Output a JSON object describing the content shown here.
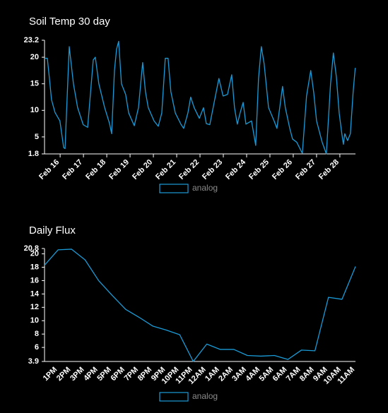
{
  "chart_data": [
    {
      "type": "line",
      "title": "Soil Temp 30 day",
      "x": [
        15.33,
        15.45,
        15.54,
        15.63,
        15.78,
        15.99,
        16.15,
        16.21,
        16.39,
        16.57,
        16.75,
        16.99,
        17.18,
        17.42,
        17.51,
        17.66,
        17.91,
        18.12,
        18.21,
        18.33,
        18.42,
        18.51,
        18.63,
        18.81,
        18.94,
        19.18,
        19.36,
        19.54,
        19.66,
        19.78,
        20.03,
        20.21,
        20.36,
        20.51,
        20.63,
        20.75,
        20.94,
        21.18,
        21.3,
        21.48,
        21.6,
        21.75,
        21.97,
        22.15,
        22.27,
        22.42,
        22.63,
        22.81,
        22.99,
        23.18,
        23.36,
        23.48,
        23.6,
        23.72,
        23.85,
        23.97,
        24.21,
        24.39,
        24.51,
        24.63,
        24.75,
        24.94,
        25.18,
        25.3,
        25.42,
        25.54,
        25.66,
        25.85,
        25.97,
        26.15,
        26.39,
        26.57,
        26.75,
        26.88,
        27.0,
        27.24,
        27.42,
        27.6,
        27.72,
        27.85,
        27.97,
        28.09,
        28.15,
        28.21,
        28.33,
        28.45,
        28.57,
        28.66
      ],
      "series": [
        {
          "name": "analog",
          "color": "#1a9bd7",
          "values": [
            19.8,
            19.8,
            16,
            12,
            9.6,
            8,
            3,
            2.8,
            22,
            15,
            10.5,
            7.3,
            6.8,
            19.5,
            20,
            15,
            10.5,
            7.5,
            5.6,
            17.5,
            21.5,
            23,
            15,
            13,
            9.5,
            7.1,
            10.5,
            19,
            13.5,
            10.5,
            8,
            7,
            9.5,
            19.8,
            19.8,
            13.5,
            9.5,
            7.4,
            6.6,
            9.5,
            12.5,
            10.5,
            8.5,
            10.5,
            7.5,
            7.3,
            12,
            16,
            12.7,
            13,
            16.7,
            10.5,
            7.4,
            9.5,
            11.5,
            7.4,
            8,
            3.4,
            16,
            22,
            18.8,
            10.5,
            8,
            6.6,
            10.5,
            14.5,
            10.5,
            6.6,
            4.6,
            4,
            1.9,
            12.7,
            17.5,
            13.3,
            8,
            4,
            1.8,
            15,
            20.8,
            16.3,
            9.5,
            5.4,
            3.6,
            5.6,
            4.3,
            5.6,
            13.5,
            18
          ]
        }
      ],
      "xlim": [
        15.33,
        28.67
      ],
      "xticks": [
        {
          "value": 16,
          "label": "Feb 16"
        },
        {
          "value": 17,
          "label": "Feb 17"
        },
        {
          "value": 18,
          "label": "Feb 18"
        },
        {
          "value": 19,
          "label": "Feb 19"
        },
        {
          "value": 20,
          "label": "Feb 20"
        },
        {
          "value": 21,
          "label": "Feb 21"
        },
        {
          "value": 22,
          "label": "Feb 22"
        },
        {
          "value": 23,
          "label": "Feb 23"
        },
        {
          "value": 24,
          "label": "Feb 24"
        },
        {
          "value": 25,
          "label": "Feb 25"
        },
        {
          "value": 26,
          "label": "Feb 26"
        },
        {
          "value": 27,
          "label": "Feb 27"
        },
        {
          "value": 28,
          "label": "Feb 28"
        }
      ],
      "ylim": [
        1.8,
        23.2
      ],
      "yticks": [
        1.8,
        5,
        10,
        15,
        20,
        23.2
      ]
    },
    {
      "type": "line",
      "title": "Daily Flux",
      "categories": [
        null,
        "1PM",
        "2PM",
        "3PM",
        "4PM",
        "5PM",
        "6PM",
        "7PM",
        "8PM",
        "9PM",
        "10PM",
        "11PM",
        "12AM",
        "1AM",
        "2AM",
        "3AM",
        "4AM",
        "5AM",
        "6AM",
        "7AM",
        "8AM",
        "9AM",
        "10AM",
        "11AM"
      ],
      "series": [
        {
          "name": "analog",
          "color": "#1a9bd7",
          "values": [
            18.3,
            20.6,
            20.7,
            19.1,
            16,
            13.8,
            11.7,
            10.5,
            9.2,
            8.6,
            7.9,
            3.9,
            6.5,
            5.7,
            5.7,
            4.8,
            4.7,
            4.8,
            4.2,
            5.6,
            5.5,
            13.5,
            13.2,
            18.1
          ]
        }
      ],
      "ylim": [
        3.9,
        20.8
      ],
      "yticks": [
        3.9,
        6,
        8,
        10,
        12,
        14,
        16,
        18,
        20,
        20.8
      ]
    }
  ]
}
